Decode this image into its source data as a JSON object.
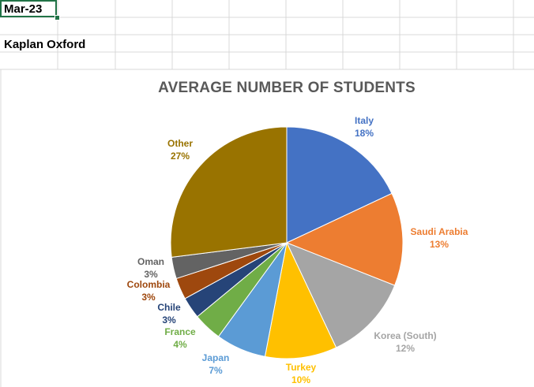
{
  "sheet": {
    "cell_a1": "Mar-23",
    "cell_a3": "Kaplan Oxford"
  },
  "colors": {
    "gridline": "#d9d9d9",
    "selection": "#217346",
    "title": "#595959"
  },
  "chart_data": {
    "type": "pie",
    "title": "AVERAGE NUMBER OF STUDENTS",
    "legend": "none (data labels outside slices)",
    "slices": [
      {
        "label": "Italy",
        "value": 18,
        "display": "18%",
        "color": "#4472c4"
      },
      {
        "label": "Saudi Arabia",
        "value": 13,
        "display": "13%",
        "color": "#ed7d31"
      },
      {
        "label": "Korea (South)",
        "value": 12,
        "display": "12%",
        "color": "#a5a5a5"
      },
      {
        "label": "Turkey",
        "value": 10,
        "display": "10%",
        "color": "#ffc000"
      },
      {
        "label": "Japan",
        "value": 7,
        "display": "7%",
        "color": "#5b9bd5"
      },
      {
        "label": "France",
        "value": 4,
        "display": "4%",
        "color": "#70ad47"
      },
      {
        "label": "Chile",
        "value": 3,
        "display": "3%",
        "color": "#264478"
      },
      {
        "label": "Colombia",
        "value": 3,
        "display": "3%",
        "color": "#9e480e"
      },
      {
        "label": "Oman",
        "value": 3,
        "display": "3%",
        "color": "#636363"
      },
      {
        "label": "Other",
        "value": 27,
        "display": "27%",
        "color": "#997300"
      }
    ]
  }
}
